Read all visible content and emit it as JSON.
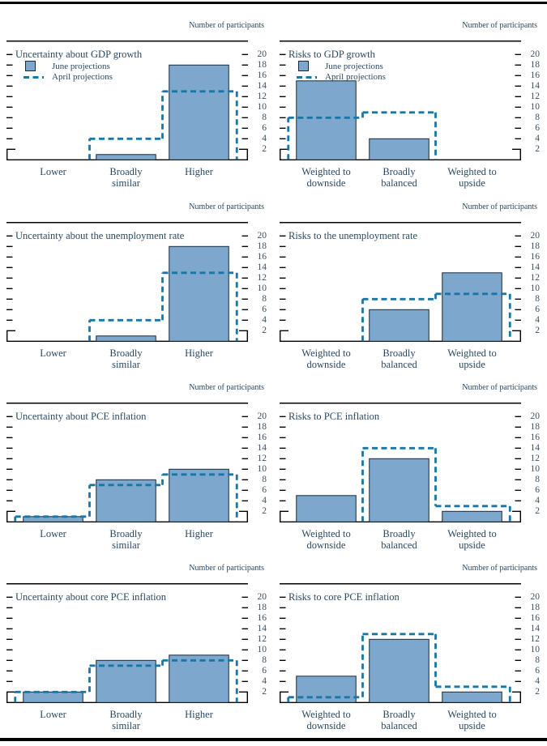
{
  "page": {
    "axis_label": "Number of participants"
  },
  "chart_data": {
    "type": "bar",
    "ylabel": "Number of participants",
    "ylim": [
      0,
      20
    ],
    "yticks": [
      2,
      4,
      6,
      8,
      10,
      12,
      14,
      16,
      18,
      20
    ],
    "grid": false,
    "legend_position": "top-left inside first-row panels only",
    "series_names": [
      "June projections",
      "April projections"
    ],
    "colors": {
      "june_bar_fill": "#7da7cc",
      "june_bar_stroke": "#17293a",
      "april_line": "#1777a7",
      "text": "#2a4963",
      "tick_text": "#3e5060",
      "axis": "#000000"
    },
    "panels": [
      {
        "title": "Uncertainty about GDP growth",
        "legend": true,
        "categories": [
          "Lower",
          "Broadly\nsimilar",
          "Higher"
        ],
        "series": [
          {
            "name": "June projections",
            "values": [
              0,
              1,
              18
            ]
          },
          {
            "name": "April projections",
            "values": [
              0,
              4,
              13
            ]
          }
        ]
      },
      {
        "title": "Risks to GDP growth",
        "legend": true,
        "categories": [
          "Weighted to\ndownside",
          "Broadly\nbalanced",
          "Weighted to\nupside"
        ],
        "series": [
          {
            "name": "June projections",
            "values": [
              15,
              4,
              0
            ]
          },
          {
            "name": "April projections",
            "values": [
              8,
              9,
              0
            ]
          }
        ]
      },
      {
        "title": "Uncertainty about the unemployment rate",
        "legend": false,
        "categories": [
          "Lower",
          "Broadly\nsimilar",
          "Higher"
        ],
        "series": [
          {
            "name": "June projections",
            "values": [
              0,
              1,
              18
            ]
          },
          {
            "name": "April projections",
            "values": [
              0,
              4,
              13
            ]
          }
        ]
      },
      {
        "title": "Risks to the unemployment rate",
        "legend": false,
        "categories": [
          "Weighted to\ndownside",
          "Broadly\nbalanced",
          "Weighted to\nupside"
        ],
        "series": [
          {
            "name": "June projections",
            "values": [
              0,
              6,
              13
            ]
          },
          {
            "name": "April projections",
            "values": [
              0,
              8,
              9
            ]
          }
        ]
      },
      {
        "title": "Uncertainty about PCE inflation",
        "legend": false,
        "categories": [
          "Lower",
          "Broadly\nsimilar",
          "Higher"
        ],
        "series": [
          {
            "name": "June projections",
            "values": [
              1,
              8,
              10
            ]
          },
          {
            "name": "April projections",
            "values": [
              1,
              7,
              9
            ]
          }
        ]
      },
      {
        "title": "Risks to PCE inflation",
        "legend": false,
        "categories": [
          "Weighted to\ndownside",
          "Broadly\nbalanced",
          "Weighted to\nupside"
        ],
        "series": [
          {
            "name": "June projections",
            "values": [
              5,
              12,
              2
            ]
          },
          {
            "name": "April projections",
            "values": [
              0,
              14,
              3
            ]
          }
        ]
      },
      {
        "title": "Uncertainty about core PCE inflation",
        "legend": false,
        "categories": [
          "Lower",
          "Broadly\nsimilar",
          "Higher"
        ],
        "series": [
          {
            "name": "June projections",
            "values": [
              2,
              8,
              9
            ]
          },
          {
            "name": "April projections",
            "values": [
              2,
              7,
              8
            ]
          }
        ]
      },
      {
        "title": "Risks to core PCE inflation",
        "legend": false,
        "categories": [
          "Weighted to\ndownside",
          "Broadly\nbalanced",
          "Weighted to\nupside"
        ],
        "series": [
          {
            "name": "June projections",
            "values": [
              5,
              12,
              2
            ]
          },
          {
            "name": "April projections",
            "values": [
              1,
              13,
              3
            ]
          }
        ]
      }
    ]
  }
}
